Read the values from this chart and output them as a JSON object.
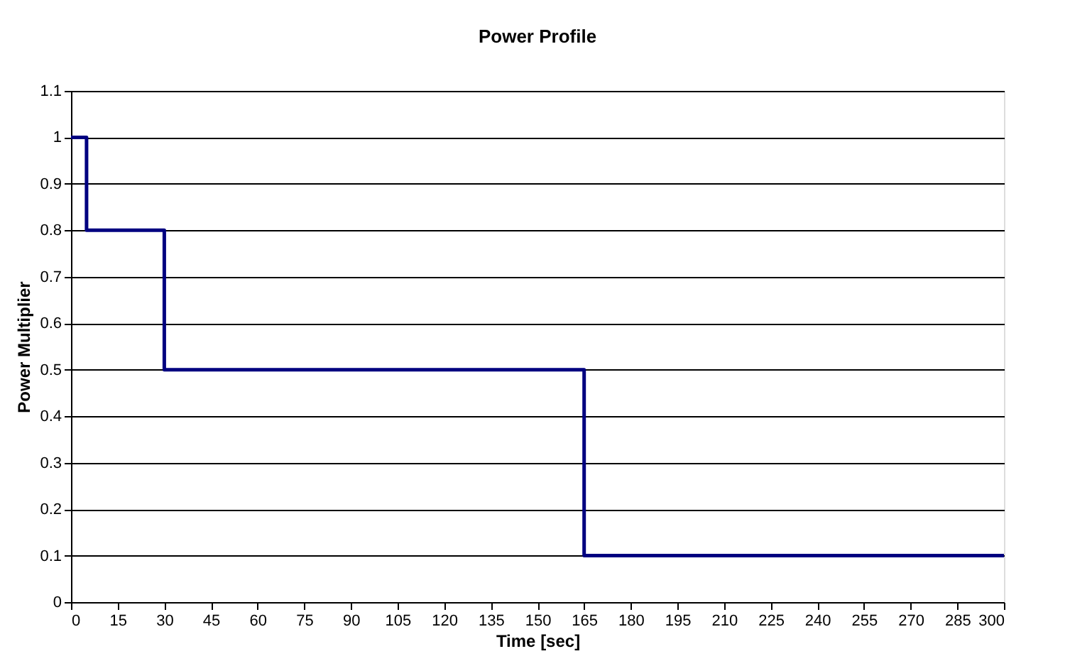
{
  "chart_data": {
    "type": "step",
    "title": "Power Profile",
    "xlabel": "Time [sec]",
    "ylabel": "Power Multiplier",
    "x": [
      0,
      5,
      30,
      165,
      300
    ],
    "series": [
      {
        "color": "#000080",
        "values": [
          1,
          0.8,
          0.5,
          0.1,
          0.1
        ]
      }
    ],
    "xlim": [
      0,
      300
    ],
    "xticks": [
      0,
      15,
      30,
      45,
      60,
      75,
      90,
      105,
      120,
      135,
      150,
      165,
      180,
      195,
      210,
      225,
      240,
      255,
      270,
      285,
      300
    ],
    "ylim": [
      0,
      1.1
    ],
    "yticks": [
      0,
      0.1,
      0.2,
      0.3,
      0.4,
      0.5,
      0.6,
      0.7,
      0.8,
      0.9,
      1,
      1.1
    ],
    "grid": "y",
    "marker": "none",
    "line_style": "solid"
  }
}
